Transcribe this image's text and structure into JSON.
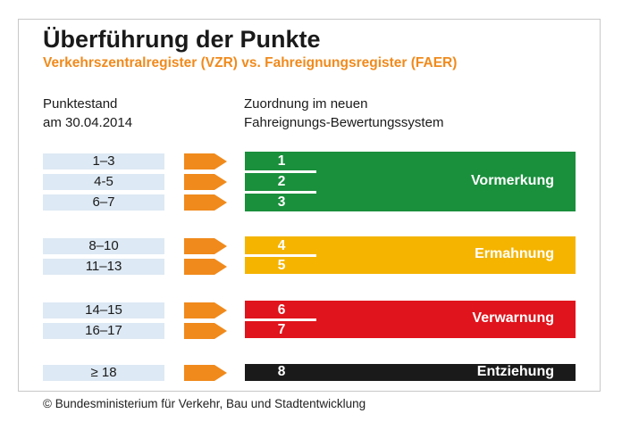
{
  "title": "Überführung der Punkte",
  "subtitle": "Verkehrszentralregister (VZR) vs. Fahreignungsregister (FAER)",
  "left_header": [
    "Punktestand",
    "am 30.04.2014"
  ],
  "right_header": [
    "Zuordnung im neuen",
    "Fahreignungs-Bewertungssystem"
  ],
  "groups": [
    {
      "label": "Vormerkung",
      "color": "#1a8f3c",
      "rows": [
        {
          "range": "1–3",
          "points": "1"
        },
        {
          "range": "4-5",
          "points": "2"
        },
        {
          "range": "6–7",
          "points": "3"
        }
      ]
    },
    {
      "label": "Ermahnung",
      "color": "#f5b400",
      "rows": [
        {
          "range": "8–10",
          "points": "4"
        },
        {
          "range": "11–13",
          "points": "5"
        }
      ]
    },
    {
      "label": "Verwarnung",
      "color": "#e0141c",
      "rows": [
        {
          "range": "14–15",
          "points": "6"
        },
        {
          "range": "16–17",
          "points": "7"
        }
      ]
    },
    {
      "label": "Entziehung",
      "color": "#1a1a1a",
      "rows": [
        {
          "range": "≥ 18",
          "points": "8"
        }
      ]
    }
  ],
  "arrow_color": "#f08a1c",
  "credit": "© Bundesministerium für Verkehr, Bau und Stadtentwicklung"
}
